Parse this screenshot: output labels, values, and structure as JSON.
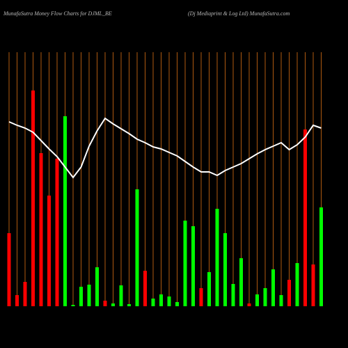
{
  "chart_data": {
    "type": "bar",
    "title": "MunafaSutra  Money Flow  Charts for DJML_BE",
    "subtitle": "(Dj Mediaprint & Log Ltd) MunafaSutra.com",
    "categories": [
      null,
      null,
      null,
      null,
      null,
      null,
      null,
      null,
      null,
      null,
      null,
      null,
      null,
      null,
      null,
      null,
      null,
      null,
      null,
      null,
      null,
      null,
      null,
      null,
      null,
      null,
      null,
      null,
      null,
      null,
      null,
      null,
      null,
      null,
      null,
      null,
      null,
      null,
      null,
      null
    ],
    "values": [
      105,
      16,
      35,
      310,
      220,
      159,
      212,
      273,
      2,
      28,
      31,
      56,
      8,
      4,
      30,
      3,
      168,
      51,
      11,
      17,
      14,
      6,
      123,
      115,
      26,
      49,
      140,
      105,
      32,
      69,
      4,
      17,
      26,
      53,
      16,
      38,
      62,
      254,
      60,
      142
    ],
    "bar_colors": [
      "#ff0000",
      "#ff0000",
      "#ff0000",
      "#ff0000",
      "#ff0000",
      "#ff0000",
      "#ff0000",
      "#00ff00",
      "#00ff00",
      "#00ff00",
      "#00ff00",
      "#00ff00",
      "#ff0000",
      "#00ff00",
      "#00ff00",
      "#00ff00",
      "#00ff00",
      "#ff0000",
      "#00ff00",
      "#00ff00",
      "#00ff00",
      "#00ff00",
      "#00ff00",
      "#00ff00",
      "#ff0000",
      "#00ff00",
      "#00ff00",
      "#00ff00",
      "#00ff00",
      "#00ff00",
      "#ff0000",
      "#00ff00",
      "#00ff00",
      "#00ff00",
      "#00ff00",
      "#ff0000",
      "#00ff00",
      "#ff0000",
      "#ff0000",
      "#00ff00"
    ],
    "line_values": [
      265,
      260,
      256,
      250,
      238,
      226,
      215,
      200,
      185,
      200,
      230,
      252,
      270,
      262,
      255,
      248,
      240,
      235,
      229,
      226,
      221,
      216,
      208,
      200,
      193,
      193,
      188,
      195,
      200,
      205,
      212,
      219,
      225,
      230,
      235,
      225,
      232,
      243,
      260,
      256
    ],
    "line_color": "#ffffff",
    "grid_color": "#b05a10",
    "ylim": [
      0,
      380
    ]
  }
}
